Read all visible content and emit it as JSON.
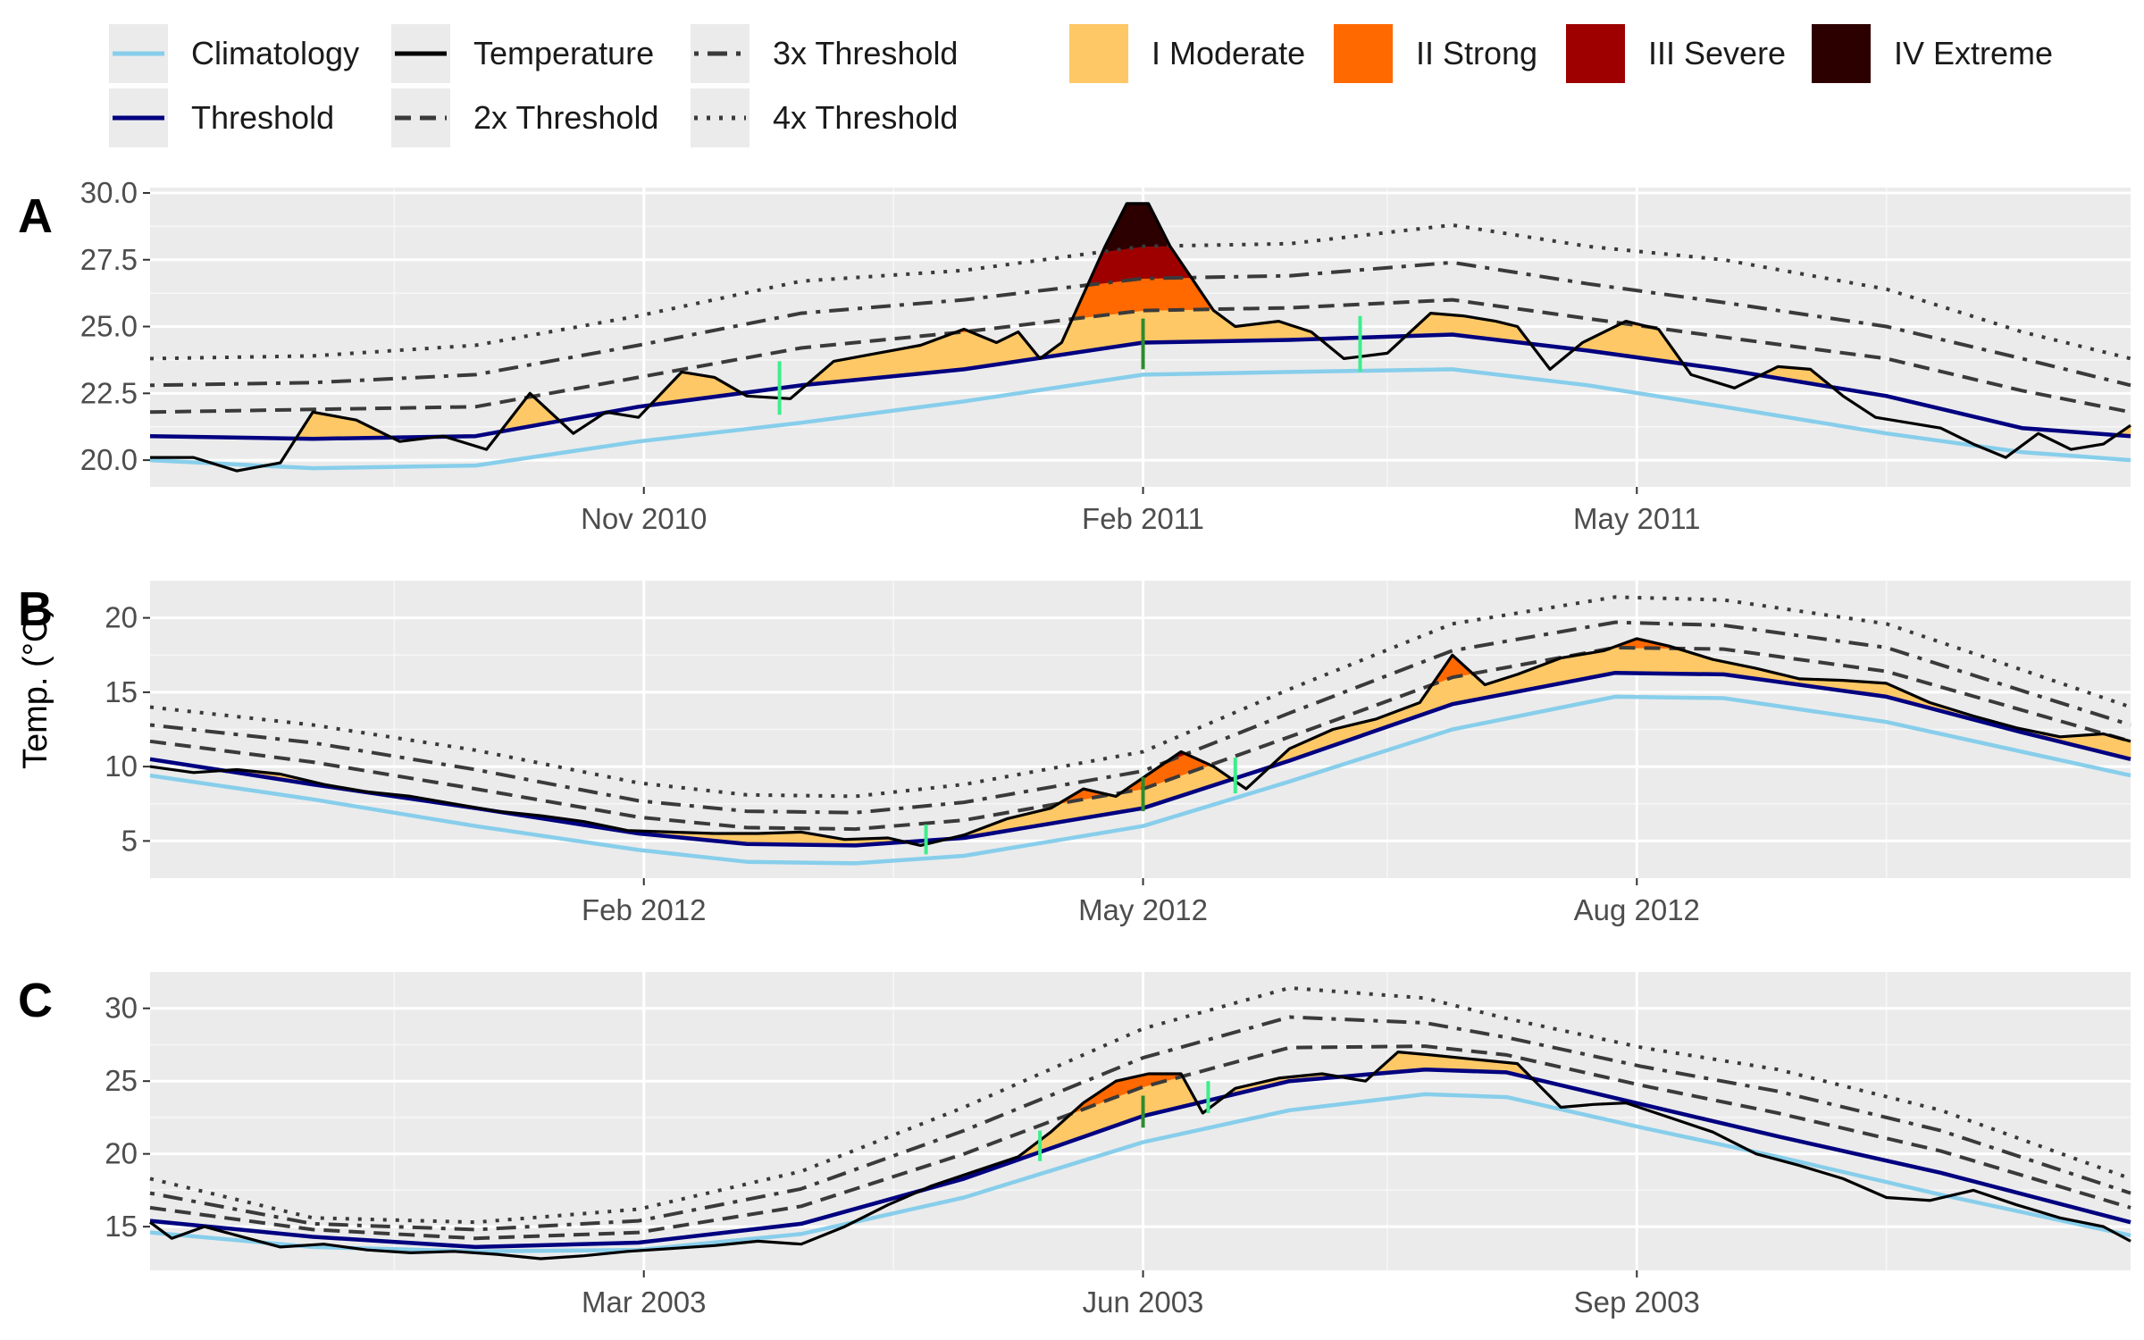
{
  "figure": {
    "ylabel": "Temp. (°C)",
    "legend": {
      "lines": [
        {
          "key": "climatology",
          "label": "Climatology",
          "color": "#87CEEB",
          "dash": "solid"
        },
        {
          "key": "threshold",
          "label": "Threshold",
          "color": "#000080",
          "dash": "solid"
        },
        {
          "key": "temperature",
          "label": "Temperature",
          "color": "#000000",
          "dash": "solid"
        },
        {
          "key": "thresh2",
          "label": "2x Threshold",
          "color": "#3a3a3a",
          "dash": "dashed"
        },
        {
          "key": "thresh3",
          "label": "3x Threshold",
          "color": "#3a3a3a",
          "dash": "dotdash"
        },
        {
          "key": "thresh4",
          "label": "4x Threshold",
          "color": "#3a3a3a",
          "dash": "dotted"
        }
      ],
      "categories": [
        {
          "label": "I Moderate",
          "color": "#FFC866"
        },
        {
          "label": "II Strong",
          "color": "#FF6900"
        },
        {
          "label": "III Severe",
          "color": "#9E0000"
        },
        {
          "label": "IV Extreme",
          "color": "#2D0000"
        }
      ]
    },
    "event_marker_colors": {
      "start_end": "#3CEE8C",
      "peak": "#2E8B2E"
    }
  },
  "chart_data": [
    {
      "panel": "A",
      "type": "line",
      "ylim": [
        19,
        30.2
      ],
      "yticks": [
        20.0,
        22.5,
        25.0,
        27.5,
        30.0
      ],
      "ytick_labels": [
        "20.0",
        "22.5",
        "25.0",
        "27.5",
        "30.0"
      ],
      "xrange_days": [
        0,
        365
      ],
      "xticks": [
        {
          "day": 91,
          "label": "Nov 2010"
        },
        {
          "day": 183,
          "label": "Feb 2011"
        },
        {
          "day": 274,
          "label": "May 2011"
        }
      ],
      "xminor_days": [
        45,
        137,
        228,
        320
      ],
      "climatology": {
        "x": [
          0,
          30,
          60,
          90,
          120,
          150,
          183,
          210,
          240,
          265,
          290,
          320,
          345,
          365
        ],
        "y": [
          20.0,
          19.7,
          19.8,
          20.7,
          21.4,
          22.2,
          23.2,
          23.3,
          23.4,
          22.8,
          22.0,
          21.0,
          20.3,
          20.0
        ]
      },
      "threshold": {
        "x": [
          0,
          30,
          60,
          90,
          120,
          150,
          183,
          210,
          240,
          265,
          290,
          320,
          345,
          365
        ],
        "y": [
          20.9,
          20.8,
          20.9,
          22.0,
          22.8,
          23.4,
          24.4,
          24.5,
          24.7,
          24.1,
          23.4,
          22.4,
          21.2,
          20.9
        ]
      },
      "temperature": {
        "x": [
          0,
          8,
          16,
          24,
          30,
          38,
          46,
          54,
          62,
          70,
          78,
          84,
          90,
          98,
          104,
          110,
          118,
          126,
          134,
          142,
          150,
          156,
          160,
          164,
          168,
          172,
          176,
          180,
          184,
          188,
          192,
          196,
          200,
          208,
          214,
          220,
          228,
          236,
          242,
          248,
          252,
          258,
          264,
          272,
          278,
          284,
          292,
          300,
          306,
          312,
          318,
          324,
          330,
          336,
          342,
          348,
          354,
          360,
          365
        ],
        "y": [
          20.1,
          20.1,
          19.6,
          19.9,
          21.8,
          21.5,
          20.7,
          20.9,
          20.4,
          22.5,
          21.0,
          21.8,
          21.6,
          23.3,
          23.1,
          22.4,
          22.3,
          23.7,
          24.0,
          24.3,
          24.9,
          24.4,
          24.8,
          23.8,
          24.4,
          26.2,
          28.0,
          29.6,
          29.6,
          28.0,
          26.8,
          25.6,
          25.0,
          25.2,
          24.8,
          23.8,
          24.0,
          25.5,
          25.4,
          25.2,
          25.0,
          23.4,
          24.4,
          25.2,
          24.9,
          23.2,
          22.7,
          23.5,
          23.4,
          22.4,
          21.6,
          21.4,
          21.2,
          20.6,
          20.1,
          21.0,
          20.4,
          20.6,
          21.3
        ]
      },
      "thresh2": {
        "x": [
          0,
          30,
          60,
          90,
          120,
          150,
          183,
          210,
          240,
          265,
          290,
          320,
          345,
          365
        ],
        "y": [
          21.8,
          21.9,
          22.0,
          23.1,
          24.2,
          24.8,
          25.6,
          25.7,
          26.0,
          25.3,
          24.6,
          23.8,
          22.6,
          21.8
        ]
      },
      "thresh3": {
        "x": [
          0,
          30,
          60,
          90,
          120,
          150,
          183,
          210,
          240,
          265,
          290,
          320,
          345,
          365
        ],
        "y": [
          22.8,
          22.9,
          23.2,
          24.3,
          25.5,
          26.0,
          26.8,
          26.9,
          27.4,
          26.6,
          25.9,
          25.0,
          23.8,
          22.8
        ]
      },
      "thresh4": {
        "x": [
          0,
          30,
          60,
          90,
          120,
          150,
          183,
          210,
          240,
          265,
          290,
          320,
          345,
          365
        ],
        "y": [
          23.8,
          23.9,
          24.3,
          25.4,
          26.7,
          27.1,
          28.0,
          28.1,
          28.8,
          28.0,
          27.5,
          26.4,
          24.8,
          23.8
        ]
      },
      "event_markers": [
        {
          "day": 116,
          "y0": 21.7,
          "y1": 23.7,
          "kind": "start_end"
        },
        {
          "day": 183,
          "y0": 23.4,
          "y1": 25.3,
          "kind": "peak"
        },
        {
          "day": 223,
          "y0": 23.3,
          "y1": 25.4,
          "kind": "start_end"
        }
      ]
    },
    {
      "panel": "B",
      "type": "line",
      "ylim": [
        2.5,
        22.5
      ],
      "yticks": [
        5,
        10,
        15,
        20
      ],
      "ytick_labels": [
        "5",
        "10",
        "15",
        "20"
      ],
      "xrange_days": [
        0,
        365
      ],
      "xticks": [
        {
          "day": 91,
          "label": "Feb 2012"
        },
        {
          "day": 183,
          "label": "May 2012"
        },
        {
          "day": 274,
          "label": "Aug 2012"
        }
      ],
      "xminor_days": [
        45,
        137,
        228,
        320
      ],
      "climatology": {
        "x": [
          0,
          30,
          60,
          90,
          110,
          130,
          150,
          183,
          210,
          240,
          270,
          290,
          320,
          345,
          365
        ],
        "y": [
          9.4,
          7.8,
          6.0,
          4.4,
          3.6,
          3.5,
          4.0,
          6.0,
          9.0,
          12.5,
          14.7,
          14.6,
          13.0,
          11.0,
          9.4
        ]
      },
      "threshold": {
        "x": [
          0,
          30,
          60,
          90,
          110,
          130,
          150,
          183,
          210,
          240,
          270,
          290,
          320,
          345,
          365
        ],
        "y": [
          10.5,
          8.8,
          7.2,
          5.5,
          4.8,
          4.7,
          5.2,
          7.2,
          10.4,
          14.2,
          16.3,
          16.2,
          14.7,
          12.3,
          10.5
        ]
      },
      "temperature": {
        "x": [
          0,
          8,
          16,
          24,
          32,
          40,
          48,
          56,
          64,
          72,
          80,
          88,
          96,
          104,
          112,
          120,
          128,
          136,
          142,
          150,
          158,
          166,
          172,
          178,
          184,
          190,
          196,
          202,
          210,
          218,
          226,
          234,
          240,
          246,
          252,
          260,
          268,
          274,
          280,
          288,
          296,
          304,
          312,
          320,
          328,
          336,
          344,
          352,
          360,
          365
        ],
        "y": [
          10.0,
          9.6,
          9.8,
          9.5,
          8.8,
          8.3,
          8.0,
          7.5,
          7.0,
          6.7,
          6.3,
          5.7,
          5.6,
          5.5,
          5.5,
          5.6,
          5.1,
          5.2,
          4.7,
          5.4,
          6.5,
          7.2,
          8.5,
          8.0,
          9.5,
          11.0,
          10.0,
          8.5,
          11.2,
          12.5,
          13.2,
          14.3,
          17.5,
          15.5,
          16.2,
          17.3,
          17.8,
          18.6,
          18.1,
          17.2,
          16.6,
          15.9,
          15.8,
          15.6,
          14.3,
          13.4,
          12.6,
          12.0,
          12.2,
          11.7
        ]
      },
      "thresh2": {
        "x": [
          0,
          30,
          60,
          90,
          110,
          130,
          150,
          183,
          210,
          240,
          270,
          290,
          320,
          345,
          365
        ],
        "y": [
          11.7,
          10.3,
          8.5,
          6.6,
          5.9,
          5.8,
          6.4,
          8.5,
          12.0,
          16.0,
          18.0,
          17.9,
          16.4,
          13.8,
          11.7
        ]
      },
      "thresh3": {
        "x": [
          0,
          30,
          60,
          90,
          110,
          130,
          150,
          183,
          210,
          240,
          270,
          290,
          320,
          345,
          365
        ],
        "y": [
          12.8,
          11.6,
          9.8,
          7.7,
          7.0,
          6.9,
          7.6,
          9.7,
          13.6,
          17.8,
          19.7,
          19.5,
          18.0,
          15.1,
          12.8
        ]
      },
      "thresh4": {
        "x": [
          0,
          30,
          60,
          90,
          110,
          130,
          150,
          183,
          210,
          240,
          270,
          290,
          320,
          345,
          365
        ],
        "y": [
          14.0,
          12.8,
          11.1,
          8.9,
          8.1,
          8.0,
          8.8,
          11.0,
          15.2,
          19.6,
          21.4,
          21.2,
          19.6,
          16.5,
          14.0
        ]
      },
      "event_markers": [
        {
          "day": 143,
          "y0": 4.1,
          "y1": 6.1,
          "kind": "start_end"
        },
        {
          "day": 183,
          "y0": 7.0,
          "y1": 9.3,
          "kind": "peak"
        },
        {
          "day": 200,
          "y0": 8.2,
          "y1": 10.6,
          "kind": "start_end"
        }
      ]
    },
    {
      "panel": "C",
      "type": "line",
      "ylim": [
        12,
        32.5
      ],
      "yticks": [
        15,
        20,
        25,
        30
      ],
      "ytick_labels": [
        "15",
        "20",
        "25",
        "30"
      ],
      "xrange_days": [
        0,
        365
      ],
      "xticks": [
        {
          "day": 91,
          "label": "Mar 2003"
        },
        {
          "day": 183,
          "label": "Jun 2003"
        },
        {
          "day": 274,
          "label": "Sep 2003"
        }
      ],
      "xminor_days": [
        45,
        137,
        228,
        320
      ],
      "climatology": {
        "x": [
          0,
          30,
          60,
          90,
          120,
          150,
          183,
          210,
          235,
          250,
          275,
          300,
          330,
          365
        ],
        "y": [
          14.6,
          13.6,
          13.3,
          13.4,
          14.5,
          17.0,
          20.8,
          23.0,
          24.1,
          23.9,
          21.8,
          19.8,
          17.2,
          14.4
        ]
      },
      "threshold": {
        "x": [
          0,
          30,
          60,
          90,
          120,
          150,
          183,
          210,
          235,
          250,
          275,
          300,
          330,
          365
        ],
        "y": [
          15.4,
          14.3,
          13.6,
          13.9,
          15.2,
          18.3,
          22.6,
          25.0,
          25.8,
          25.6,
          23.4,
          21.2,
          18.7,
          15.3
        ]
      },
      "temperature": {
        "x": [
          0,
          4,
          10,
          16,
          24,
          32,
          40,
          48,
          56,
          64,
          72,
          80,
          88,
          96,
          104,
          112,
          120,
          128,
          136,
          144,
          152,
          160,
          166,
          172,
          178,
          184,
          190,
          194,
          200,
          208,
          216,
          224,
          230,
          236,
          244,
          252,
          260,
          266,
          272,
          280,
          288,
          296,
          304,
          312,
          320,
          328,
          336,
          344,
          352,
          360,
          365
        ],
        "y": [
          15.3,
          14.2,
          15.0,
          14.4,
          13.6,
          13.8,
          13.4,
          13.2,
          13.3,
          13.1,
          12.8,
          13.0,
          13.3,
          13.5,
          13.7,
          14.0,
          13.8,
          15.0,
          16.5,
          17.8,
          18.8,
          19.8,
          21.5,
          23.5,
          25.0,
          25.5,
          25.5,
          22.8,
          24.5,
          25.2,
          25.5,
          25.0,
          27.0,
          26.8,
          26.5,
          26.2,
          23.2,
          23.4,
          23.5,
          22.5,
          21.5,
          20.0,
          19.2,
          18.3,
          17.0,
          16.8,
          17.5,
          16.5,
          15.6,
          15.0,
          14.0
        ]
      },
      "thresh2": {
        "x": [
          0,
          30,
          60,
          90,
          120,
          150,
          183,
          210,
          235,
          250,
          275,
          300,
          330,
          365
        ],
        "y": [
          16.3,
          14.8,
          14.2,
          14.6,
          16.4,
          20.0,
          24.6,
          27.3,
          27.4,
          26.8,
          24.7,
          22.8,
          20.2,
          16.3
        ]
      },
      "thresh3": {
        "x": [
          0,
          30,
          60,
          90,
          120,
          150,
          183,
          210,
          235,
          250,
          275,
          300,
          330,
          365
        ],
        "y": [
          17.3,
          15.2,
          14.8,
          15.4,
          17.6,
          21.6,
          26.6,
          29.4,
          29.0,
          28.0,
          26.0,
          24.3,
          21.6,
          17.3
        ]
      },
      "thresh4": {
        "x": [
          0,
          30,
          60,
          90,
          120,
          150,
          183,
          210,
          235,
          250,
          275,
          300,
          330,
          365
        ],
        "y": [
          18.3,
          15.6,
          15.3,
          16.2,
          18.8,
          23.2,
          28.6,
          31.4,
          30.7,
          29.3,
          27.3,
          25.8,
          23.0,
          18.3
        ]
      },
      "event_markers": [
        {
          "day": 164,
          "y0": 19.5,
          "y1": 21.6,
          "kind": "start_end"
        },
        {
          "day": 183,
          "y0": 21.8,
          "y1": 24.0,
          "kind": "peak"
        },
        {
          "day": 195,
          "y0": 22.8,
          "y1": 25.0,
          "kind": "start_end"
        }
      ]
    }
  ]
}
